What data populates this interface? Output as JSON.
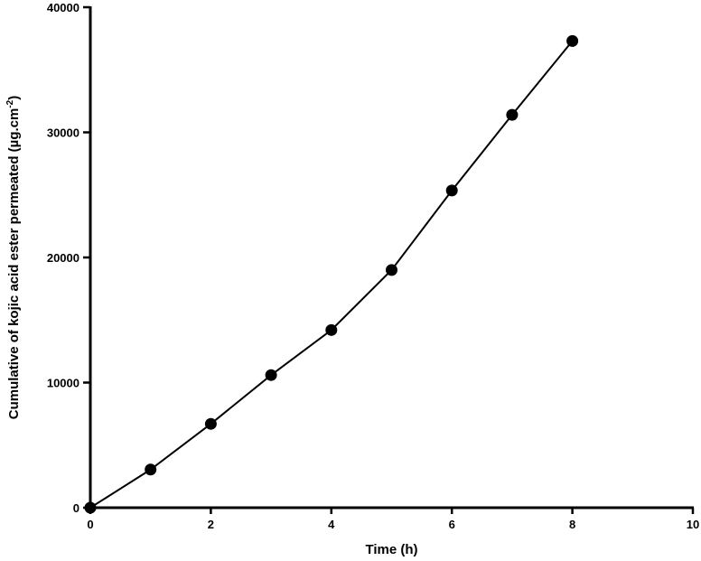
{
  "chart_data": {
    "type": "line",
    "title": "",
    "xlabel": "Time (h)",
    "ylabel_main": "Cumulative of kojic acid ester permeated (µg.cm",
    "ylabel_sup": "-2",
    "ylabel_tail": ")",
    "xlim": [
      0,
      10
    ],
    "ylim": [
      0,
      40000
    ],
    "xticks": [
      0,
      2,
      4,
      6,
      8,
      10
    ],
    "yticks": [
      0,
      10000,
      20000,
      30000,
      40000
    ],
    "grid": false,
    "marker": "filled-circle",
    "line_color": "#000000",
    "series": [
      {
        "x": [
          0,
          1,
          2,
          3,
          4,
          5,
          6,
          7,
          8
        ],
        "values": [
          0,
          3050,
          6700,
          10600,
          14200,
          19000,
          25350,
          31400,
          37300
        ]
      }
    ]
  }
}
